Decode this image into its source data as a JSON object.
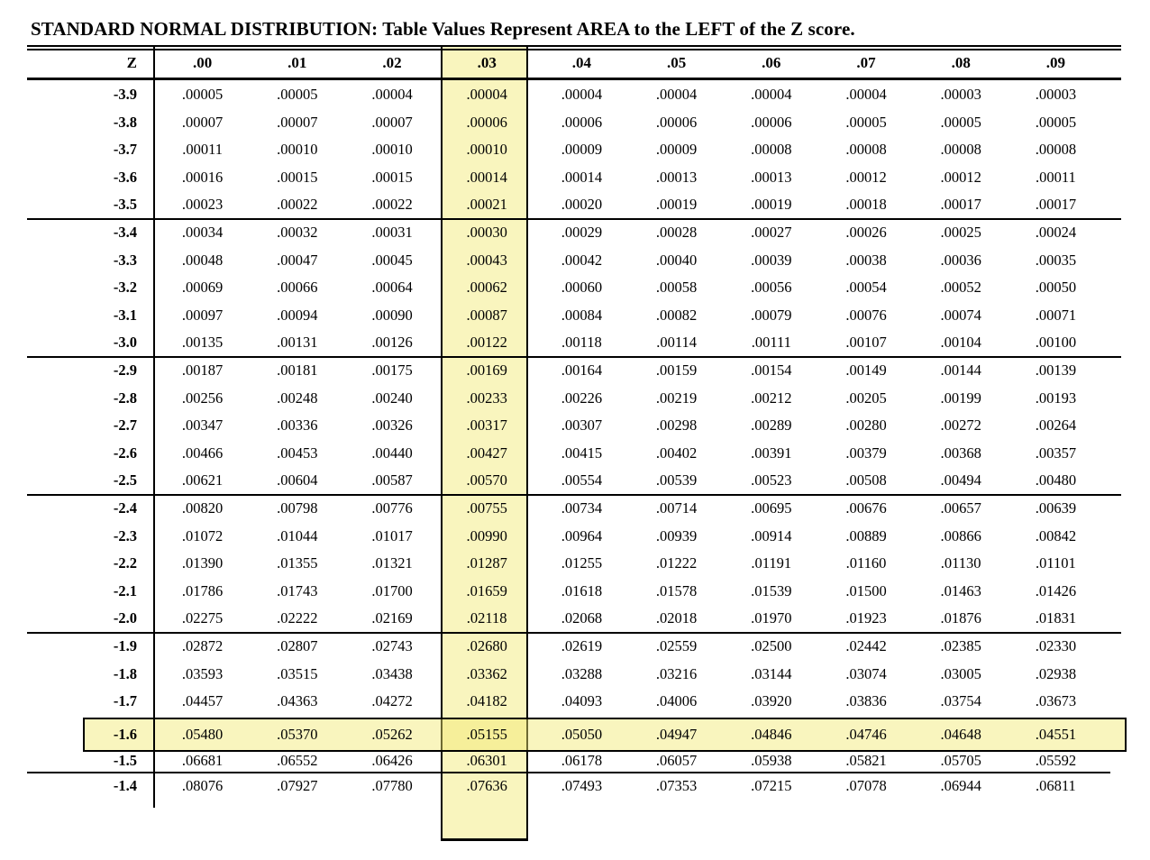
{
  "title": "STANDARD NORMAL DISTRIBUTION: Table Values Represent AREA to the LEFT of the Z score.",
  "table": {
    "header": [
      "Z",
      ".00",
      ".01",
      ".02",
      ".03",
      ".04",
      ".05",
      ".06",
      ".07",
      ".08",
      ".09"
    ],
    "rows": [
      {
        "z": "-3.9",
        "values": [
          ".00005",
          ".00005",
          ".00004",
          ".00004",
          ".00004",
          ".00004",
          ".00004",
          ".00004",
          ".00003",
          ".00003"
        ]
      },
      {
        "z": "-3.8",
        "values": [
          ".00007",
          ".00007",
          ".00007",
          ".00006",
          ".00006",
          ".00006",
          ".00006",
          ".00005",
          ".00005",
          ".00005"
        ]
      },
      {
        "z": "-3.7",
        "values": [
          ".00011",
          ".00010",
          ".00010",
          ".00010",
          ".00009",
          ".00009",
          ".00008",
          ".00008",
          ".00008",
          ".00008"
        ]
      },
      {
        "z": "-3.6",
        "values": [
          ".00016",
          ".00015",
          ".00015",
          ".00014",
          ".00014",
          ".00013",
          ".00013",
          ".00012",
          ".00012",
          ".00011"
        ]
      },
      {
        "z": "-3.5",
        "values": [
          ".00023",
          ".00022",
          ".00022",
          ".00021",
          ".00020",
          ".00019",
          ".00019",
          ".00018",
          ".00017",
          ".00017"
        ]
      },
      {
        "z": "-3.4",
        "values": [
          ".00034",
          ".00032",
          ".00031",
          ".00030",
          ".00029",
          ".00028",
          ".00027",
          ".00026",
          ".00025",
          ".00024"
        ]
      },
      {
        "z": "-3.3",
        "values": [
          ".00048",
          ".00047",
          ".00045",
          ".00043",
          ".00042",
          ".00040",
          ".00039",
          ".00038",
          ".00036",
          ".00035"
        ]
      },
      {
        "z": "-3.2",
        "values": [
          ".00069",
          ".00066",
          ".00064",
          ".00062",
          ".00060",
          ".00058",
          ".00056",
          ".00054",
          ".00052",
          ".00050"
        ]
      },
      {
        "z": "-3.1",
        "values": [
          ".00097",
          ".00094",
          ".00090",
          ".00087",
          ".00084",
          ".00082",
          ".00079",
          ".00076",
          ".00074",
          ".00071"
        ]
      },
      {
        "z": "-3.0",
        "values": [
          ".00135",
          ".00131",
          ".00126",
          ".00122",
          ".00118",
          ".00114",
          ".00111",
          ".00107",
          ".00104",
          ".00100"
        ]
      },
      {
        "z": "-2.9",
        "values": [
          ".00187",
          ".00181",
          ".00175",
          ".00169",
          ".00164",
          ".00159",
          ".00154",
          ".00149",
          ".00144",
          ".00139"
        ]
      },
      {
        "z": "-2.8",
        "values": [
          ".00256",
          ".00248",
          ".00240",
          ".00233",
          ".00226",
          ".00219",
          ".00212",
          ".00205",
          ".00199",
          ".00193"
        ]
      },
      {
        "z": "-2.7",
        "values": [
          ".00347",
          ".00336",
          ".00326",
          ".00317",
          ".00307",
          ".00298",
          ".00289",
          ".00280",
          ".00272",
          ".00264"
        ]
      },
      {
        "z": "-2.6",
        "values": [
          ".00466",
          ".00453",
          ".00440",
          ".00427",
          ".00415",
          ".00402",
          ".00391",
          ".00379",
          ".00368",
          ".00357"
        ]
      },
      {
        "z": "-2.5",
        "values": [
          ".00621",
          ".00604",
          ".00587",
          ".00570",
          ".00554",
          ".00539",
          ".00523",
          ".00508",
          ".00494",
          ".00480"
        ]
      },
      {
        "z": "-2.4",
        "values": [
          ".00820",
          ".00798",
          ".00776",
          ".00755",
          ".00734",
          ".00714",
          ".00695",
          ".00676",
          ".00657",
          ".00639"
        ]
      },
      {
        "z": "-2.3",
        "values": [
          ".01072",
          ".01044",
          ".01017",
          ".00990",
          ".00964",
          ".00939",
          ".00914",
          ".00889",
          ".00866",
          ".00842"
        ]
      },
      {
        "z": "-2.2",
        "values": [
          ".01390",
          ".01355",
          ".01321",
          ".01287",
          ".01255",
          ".01222",
          ".01191",
          ".01160",
          ".01130",
          ".01101"
        ]
      },
      {
        "z": "-2.1",
        "values": [
          ".01786",
          ".01743",
          ".01700",
          ".01659",
          ".01618",
          ".01578",
          ".01539",
          ".01500",
          ".01463",
          ".01426"
        ]
      },
      {
        "z": "-2.0",
        "values": [
          ".02275",
          ".02222",
          ".02169",
          ".02118",
          ".02068",
          ".02018",
          ".01970",
          ".01923",
          ".01876",
          ".01831"
        ]
      },
      {
        "z": "-1.9",
        "values": [
          ".02872",
          ".02807",
          ".02743",
          ".02680",
          ".02619",
          ".02559",
          ".02500",
          ".02442",
          ".02385",
          ".02330"
        ]
      },
      {
        "z": "-1.8",
        "values": [
          ".03593",
          ".03515",
          ".03438",
          ".03362",
          ".03288",
          ".03216",
          ".03144",
          ".03074",
          ".03005",
          ".02938"
        ]
      },
      {
        "z": "-1.7",
        "values": [
          ".04457",
          ".04363",
          ".04272",
          ".04182",
          ".04093",
          ".04006",
          ".03920",
          ".03836",
          ".03754",
          ".03673"
        ]
      },
      {
        "z": "-1.6",
        "values": [
          ".05480",
          ".05370",
          ".05262",
          ".05155",
          ".05050",
          ".04947",
          ".04846",
          ".04746",
          ".04648",
          ".04551"
        ]
      },
      {
        "z": "-1.5",
        "values": [
          ".06681",
          ".06552",
          ".06426",
          ".06301",
          ".06178",
          ".06057",
          ".05938",
          ".05821",
          ".05705",
          ".05592"
        ]
      },
      {
        "z": "-1.4",
        "values": [
          ".08076",
          ".07927",
          ".07780",
          ".07636",
          ".07493",
          ".07353",
          ".07215",
          ".07078",
          ".06944",
          ".06811"
        ]
      }
    ],
    "section_break_after_z": [
      "-3.5",
      "-3.0",
      "-2.5",
      "-2.0",
      "-1.5"
    ],
    "highlight": {
      "column_header": ".03",
      "row_z": "-1.6",
      "intersection_value": ".05155",
      "fill_color": "rgba(242,232,110,0.45)",
      "border_color": "#000000"
    }
  }
}
